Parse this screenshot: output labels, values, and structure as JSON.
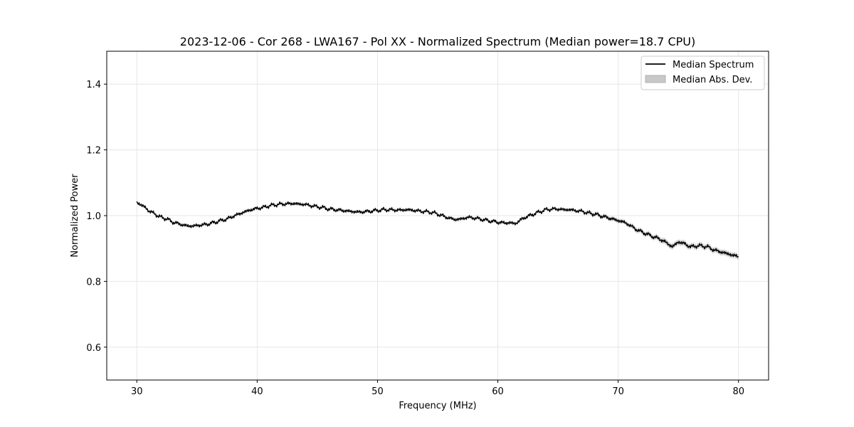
{
  "chart_data": {
    "type": "line",
    "title": "2023-12-06 - Cor 268 - LWA167 - Pol XX - Normalized Spectrum (Median power=18.7 CPU)",
    "xlabel": "Frequency (MHz)",
    "ylabel": "Normalized Power",
    "xlim": [
      27.5,
      82.5
    ],
    "ylim": [
      0.5,
      1.5
    ],
    "xticks": [
      30,
      40,
      50,
      60,
      70,
      80
    ],
    "yticks": [
      0.6,
      0.8,
      1.0,
      1.2,
      1.4
    ],
    "xtick_labels": [
      "30",
      "40",
      "50",
      "60",
      "70",
      "80"
    ],
    "ytick_labels": [
      "0.6",
      "0.8",
      "1.0",
      "1.2",
      "1.4"
    ],
    "grid": true,
    "legend_position": "top-right",
    "legend": [
      "Median Spectrum",
      "Median Abs. Dev."
    ],
    "series": [
      {
        "name": "Median Spectrum",
        "color": "#000000",
        "x": [
          30,
          30.5,
          31,
          31.5,
          32,
          32.5,
          33,
          33.5,
          34,
          34.5,
          35,
          35.5,
          36,
          36.5,
          37,
          37.5,
          38,
          38.5,
          39,
          39.5,
          40,
          40.5,
          41,
          41.5,
          42,
          42.5,
          43,
          43.5,
          44,
          44.5,
          45,
          45.5,
          46,
          46.5,
          47,
          47.5,
          48,
          48.5,
          49,
          49.5,
          50,
          50.5,
          51,
          51.5,
          52,
          52.5,
          53,
          53.5,
          54,
          54.5,
          55,
          55.5,
          56,
          56.5,
          57,
          57.5,
          58,
          58.5,
          59,
          59.5,
          60,
          60.5,
          61,
          61.5,
          62,
          62.5,
          63,
          63.5,
          64,
          64.5,
          65,
          65.5,
          66,
          66.5,
          67,
          67.5,
          68,
          68.5,
          69,
          69.5,
          70,
          70.5,
          71,
          71.5,
          72,
          72.5,
          73,
          73.5,
          74,
          74.5,
          75,
          75.5,
          76,
          76.5,
          77,
          77.5,
          78,
          78.5,
          79,
          79.5,
          80
        ],
        "y": [
          1.04,
          1.03,
          1.015,
          1.005,
          0.995,
          0.99,
          0.98,
          0.975,
          0.97,
          0.968,
          0.97,
          0.972,
          0.975,
          0.98,
          0.985,
          0.99,
          0.998,
          1.005,
          1.012,
          1.018,
          1.022,
          1.025,
          1.03,
          1.033,
          1.035,
          1.036,
          1.037,
          1.035,
          1.034,
          1.03,
          1.027,
          1.024,
          1.02,
          1.018,
          1.016,
          1.014,
          1.012,
          1.011,
          1.012,
          1.014,
          1.016,
          1.018,
          1.018,
          1.017,
          1.017,
          1.018,
          1.016,
          1.014,
          1.012,
          1.01,
          1.005,
          0.998,
          0.992,
          0.988,
          0.99,
          0.995,
          0.993,
          0.99,
          0.986,
          0.983,
          0.98,
          0.978,
          0.978,
          0.976,
          0.99,
          0.998,
          1.005,
          1.012,
          1.018,
          1.02,
          1.02,
          1.018,
          1.018,
          1.015,
          1.013,
          1.008,
          1.005,
          1.0,
          0.995,
          0.99,
          0.985,
          0.98,
          0.97,
          0.958,
          0.95,
          0.942,
          0.935,
          0.928,
          0.918,
          0.905,
          0.92,
          0.915,
          0.905,
          0.908,
          0.908,
          0.904,
          0.895,
          0.89,
          0.885,
          0.88,
          0.875
        ]
      },
      {
        "name": "Median Abs. Dev.",
        "color": "#c8c8c8",
        "note": "shaded band around median spectrum",
        "band_halfwidth": [
          0.004,
          0.004,
          0.004,
          0.004,
          0.004,
          0.004,
          0.004,
          0.004,
          0.004,
          0.004,
          0.004,
          0.004,
          0.004,
          0.004,
          0.004,
          0.004,
          0.004,
          0.004,
          0.004,
          0.004,
          0.004,
          0.004,
          0.004,
          0.004,
          0.004,
          0.004,
          0.004,
          0.004,
          0.004,
          0.004,
          0.004,
          0.004,
          0.004,
          0.004,
          0.004,
          0.004,
          0.004,
          0.004,
          0.004,
          0.004,
          0.004,
          0.004,
          0.004,
          0.004,
          0.004,
          0.004,
          0.004,
          0.004,
          0.004,
          0.004,
          0.004,
          0.004,
          0.004,
          0.004,
          0.004,
          0.004,
          0.004,
          0.004,
          0.004,
          0.004,
          0.004,
          0.004,
          0.004,
          0.004,
          0.004,
          0.004,
          0.004,
          0.004,
          0.004,
          0.004,
          0.004,
          0.004,
          0.004,
          0.004,
          0.004,
          0.006,
          0.006,
          0.006,
          0.006,
          0.006,
          0.006,
          0.006,
          0.006,
          0.007,
          0.007,
          0.007,
          0.007,
          0.008,
          0.008,
          0.008,
          0.008,
          0.008,
          0.008,
          0.008,
          0.008,
          0.008,
          0.008,
          0.008,
          0.008,
          0.008,
          0.008
        ]
      }
    ]
  }
}
